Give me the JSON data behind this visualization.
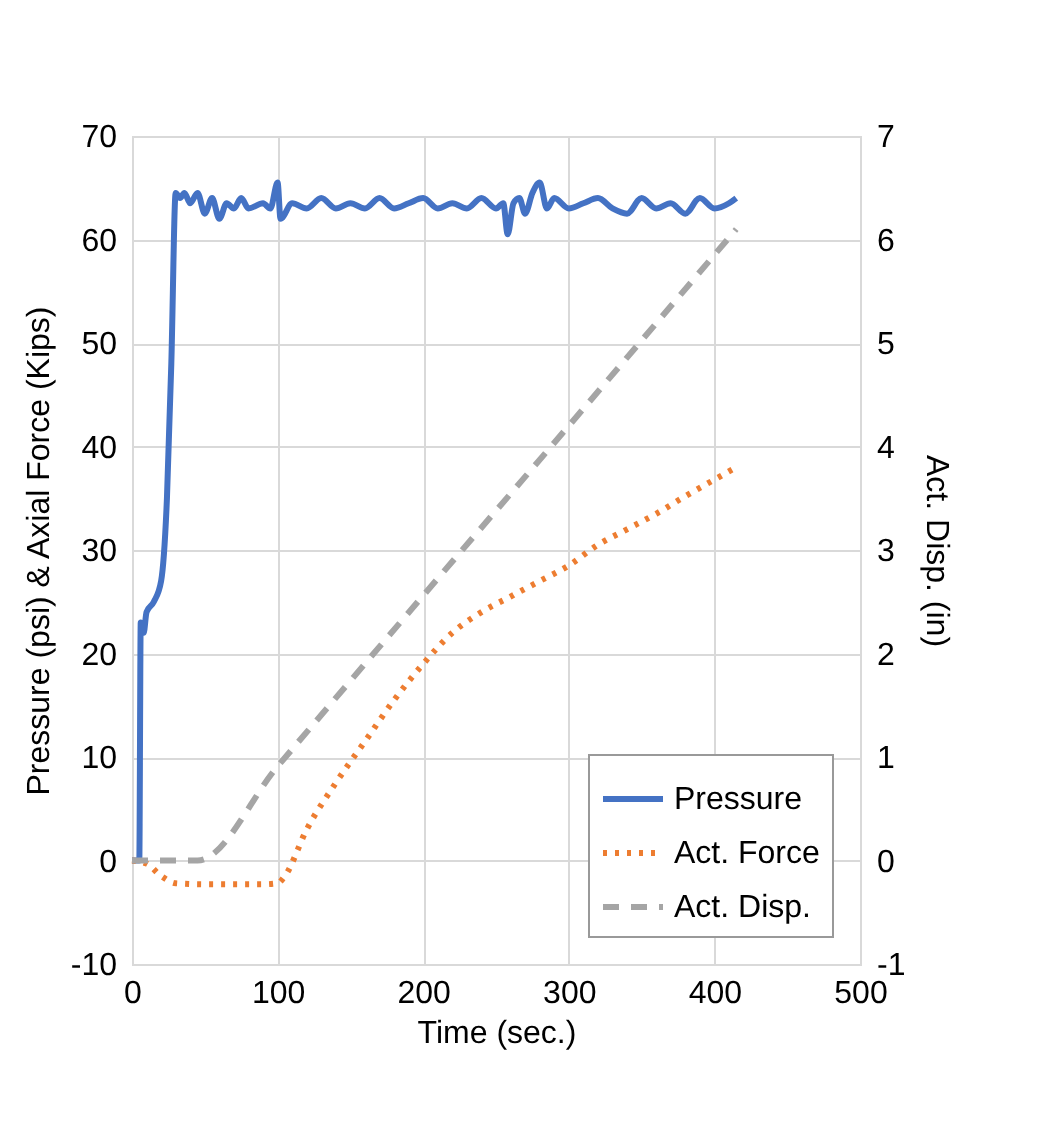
{
  "chart_data": {
    "type": "line",
    "xlabel": "Time (sec.)",
    "ylabel": "Pressure (psi) & Axial Force (Kips)",
    "y2label": "Act.  Disp. (in)",
    "xlim": [
      0,
      500
    ],
    "xticks": [
      0,
      100,
      200,
      300,
      400,
      500
    ],
    "ylim": [
      -10,
      70
    ],
    "yticks": [
      -10,
      0,
      10,
      20,
      30,
      40,
      50,
      60,
      70
    ],
    "y2lim": [
      -1,
      7
    ],
    "y2ticks": [
      -1,
      0,
      1,
      2,
      3,
      4,
      5,
      6,
      7
    ],
    "grid": true,
    "legend": "bottom right",
    "series": [
      {
        "name": "Pressure",
        "color": "#4472c4",
        "line_style": "solid",
        "x": [
          0,
          5,
          6,
          8,
          10,
          15,
          20,
          24,
          27,
          30,
          33,
          36,
          40,
          45,
          50,
          55,
          60,
          65,
          70,
          75,
          80,
          90,
          95,
          100,
          102,
          110,
          120,
          130,
          140,
          150,
          160,
          170,
          180,
          190,
          200,
          210,
          220,
          230,
          240,
          250,
          255,
          258,
          262,
          266,
          270,
          275,
          280,
          285,
          290,
          300,
          310,
          320,
          330,
          340,
          350,
          360,
          370,
          380,
          390,
          400,
          410,
          415
        ],
        "values": [
          0,
          0,
          23,
          22,
          24,
          25,
          27,
          35,
          48,
          64.5,
          64,
          64.5,
          63.5,
          64.5,
          62.5,
          64,
          62,
          63.5,
          63,
          64,
          63,
          63.5,
          63,
          65.5,
          62,
          63.5,
          63,
          64,
          63,
          63.5,
          63,
          64,
          63,
          63.5,
          64,
          63,
          63.5,
          63,
          64,
          63,
          63.5,
          60.5,
          63.5,
          64,
          62.5,
          64.5,
          65.5,
          63,
          64,
          63,
          63.5,
          64,
          63,
          62.5,
          64,
          63,
          63.5,
          62.5,
          64,
          63,
          63.5,
          64
        ]
      },
      {
        "name": "Act. Force",
        "color": "#ed7d31",
        "line_style": "dotted",
        "x": [
          0,
          10,
          20,
          30,
          50,
          70,
          90,
          100,
          105,
          120,
          140,
          160,
          180,
          200,
          220,
          240,
          260,
          280,
          300,
          320,
          340,
          360,
          380,
          400,
          415
        ],
        "values": [
          0,
          -0.3,
          -1.5,
          -2.2,
          -2.3,
          -2.3,
          -2.3,
          -2.2,
          -1.5,
          3,
          7.5,
          11.5,
          15.5,
          19,
          22,
          24,
          25.5,
          27,
          28.5,
          30.5,
          32,
          33.5,
          35.2,
          36.8,
          38
        ]
      },
      {
        "name": "Act. Disp.",
        "color": "#a5a5a5",
        "line_style": "dashed",
        "axis": "y2",
        "x": [
          0,
          20,
          40,
          45,
          100,
          200,
          300,
          415
        ],
        "values": [
          0,
          0,
          0,
          0,
          0.91,
          2.56,
          4.2,
          6.1
        ]
      }
    ]
  }
}
